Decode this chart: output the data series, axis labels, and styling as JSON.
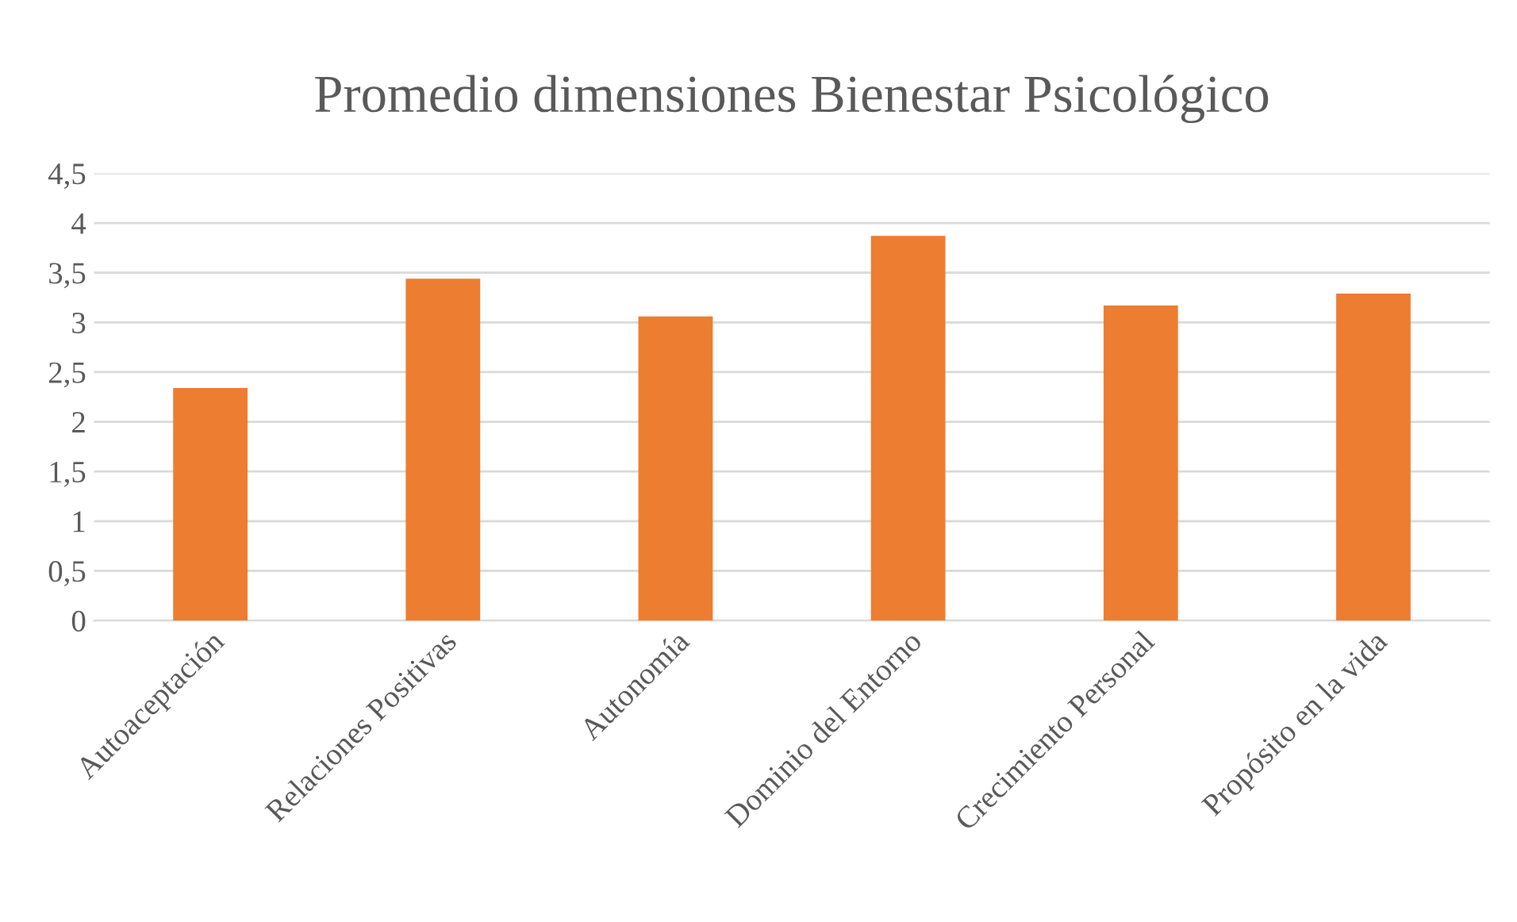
{
  "chart_data": {
    "type": "bar",
    "title": "Promedio dimensiones Bienestar Psicológico",
    "categories": [
      "Autoaceptación",
      "Relaciones Positivas",
      "Autonomía",
      "Dominio del Entorno",
      "Crecimiento Personal",
      "Propósito en la vida"
    ],
    "values": [
      2.34,
      3.44,
      3.06,
      3.87,
      3.17,
      3.29
    ],
    "color": "#ed7d31",
    "ylim": [
      0,
      4.5
    ],
    "yticks": [
      0,
      {
        "value": 0.5,
        "label": "0,5"
      },
      1,
      {
        "value": 1.5,
        "label": "1,5"
      },
      2,
      {
        "value": 2.5,
        "label": "2,5"
      },
      3,
      {
        "value": 3.5,
        "label": "3,5"
      },
      4,
      {
        "value": 4.5,
        "label": "4,5"
      }
    ],
    "grid": "y",
    "legend": false
  }
}
